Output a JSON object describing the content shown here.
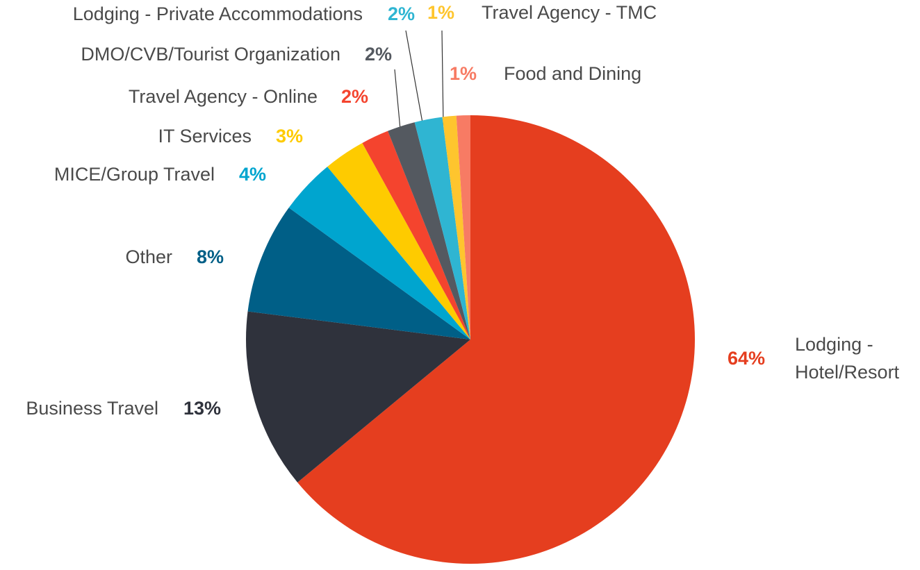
{
  "chart_data": {
    "type": "pie",
    "categories": [
      "Lodging - Hotel/Resort",
      "Business Travel",
      "Other",
      "MICE/Group Travel",
      "IT Services",
      "Travel Agency - Online",
      "DMO/CVB/Tourist Organization",
      "Lodging - Private Accommodations",
      "Travel Agency - TMC",
      "Food and Dining"
    ],
    "values": [
      64,
      13,
      8,
      4,
      3,
      2,
      2,
      2,
      1,
      1
    ],
    "value_labels": [
      "64%",
      "13%",
      "8%",
      "4%",
      "3%",
      "2%",
      "2%",
      "2%",
      "1%",
      "1%"
    ],
    "colors": [
      "#e53e1f",
      "#2f323c",
      "#005f87",
      "#00a5cf",
      "#fecb00",
      "#f4442e",
      "#545960",
      "#2fb5d2",
      "#fec52e",
      "#f77b64"
    ]
  }
}
